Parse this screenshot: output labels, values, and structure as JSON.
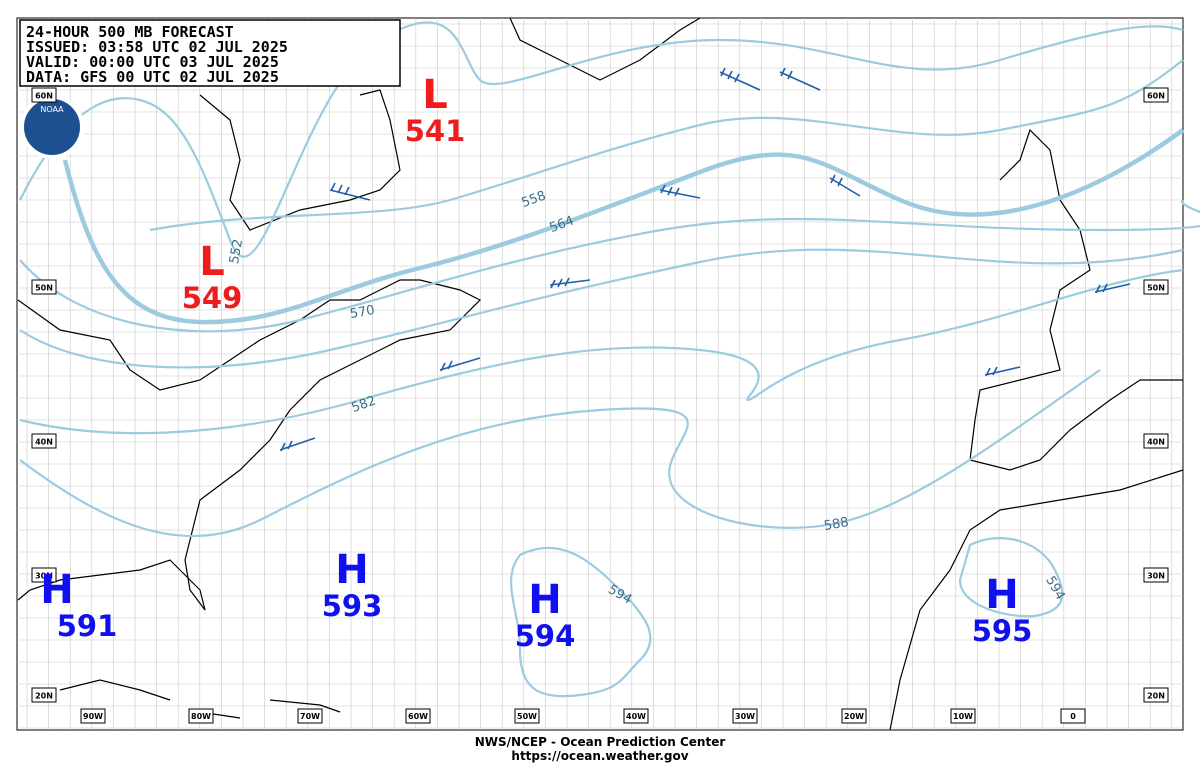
{
  "header": {
    "lines": [
      "24-HOUR 500 MB FORECAST",
      "ISSUED: 03:58 UTC 02 JUL 2025",
      "VALID:  00:00 UTC 03 JUL 2025",
      "DATA:  GFS 00 UTC 02 JUL 2025"
    ]
  },
  "logo": "NOAA",
  "centers": [
    {
      "type": "L",
      "value": 541
    },
    {
      "type": "L",
      "value": 549
    },
    {
      "type": "H",
      "value": 591
    },
    {
      "type": "H",
      "value": 593
    },
    {
      "type": "H",
      "value": 594
    },
    {
      "type": "H",
      "value": 595
    }
  ],
  "contour_labels": [
    552,
    558,
    564,
    570,
    582,
    588,
    594
  ],
  "lat_labels": [
    "60N",
    "50N",
    "40N",
    "30N",
    "20N"
  ],
  "lon_labels": [
    "90W",
    "80W",
    "70W",
    "60W",
    "50W",
    "40W",
    "30W",
    "20W",
    "10W",
    "0"
  ],
  "footer": {
    "lines": [
      "NWS/NCEP - Ocean Prediction Center",
      "https://ocean.weather.gov"
    ]
  }
}
